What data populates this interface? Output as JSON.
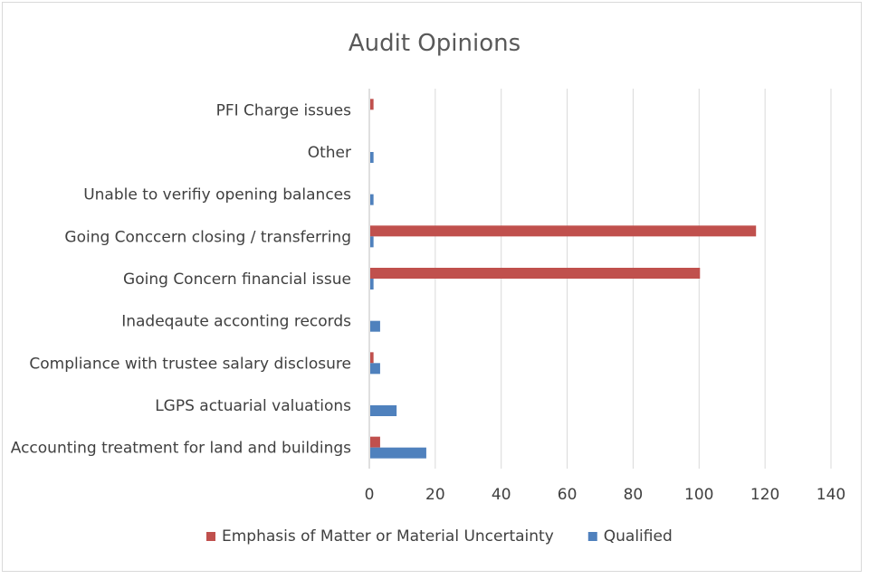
{
  "chart_data": {
    "type": "bar",
    "orientation": "horizontal",
    "title": "Audit Opinions",
    "xlabel": "",
    "ylabel": "",
    "xlim": [
      0,
      140
    ],
    "xticks": [
      0,
      20,
      40,
      60,
      80,
      100,
      120,
      140
    ],
    "grid": true,
    "legend_position": "bottom",
    "categories": [
      "PFI Charge issues",
      "Other",
      "Unable to verifiy opening balances",
      "Going Conccern closing / transferring",
      "Going Concern financial issue",
      "Inadeqaute acconting records",
      "Compliance with trustee salary disclosure",
      "LGPS actuarial valuations",
      "Accounting treatment for land and buildings"
    ],
    "series": [
      {
        "name": "Emphasis of Matter or Material Uncertainty",
        "color": "#c0504d",
        "values": [
          1,
          0,
          0,
          117,
          100,
          0,
          1,
          0,
          3
        ]
      },
      {
        "name": "Qualified",
        "color": "#4f81bd",
        "values": [
          0,
          1,
          1,
          1,
          1,
          3,
          3,
          8,
          17
        ]
      }
    ]
  }
}
